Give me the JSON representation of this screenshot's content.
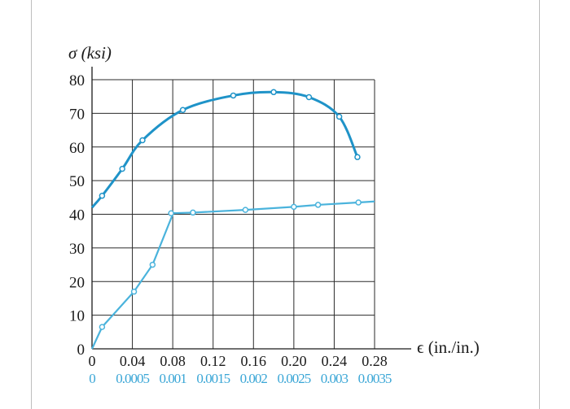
{
  "chart_data": {
    "type": "line",
    "ylabel": "σ (ksi)",
    "xlabel": "ϵ (in./in.)",
    "ylim": [
      0,
      80
    ],
    "xlim": [
      0,
      0.28
    ],
    "x2lim": [
      0,
      0.0035
    ],
    "grid": true,
    "yticks": [
      "0",
      "10",
      "20",
      "30",
      "40",
      "50",
      "60",
      "70",
      "80"
    ],
    "xticks": [
      "0",
      "0.04",
      "0.08",
      "0.12",
      "0.16",
      "0.20",
      "0.24",
      "0.28"
    ],
    "x2ticks": [
      "0",
      "0.0005",
      "0.001",
      "0.0015",
      "0.002",
      "0.0025",
      "0.003",
      "0.0035"
    ],
    "colors": {
      "upper": "#1f93c8",
      "lower": "#4ab3dc",
      "axis": "#1a1a1a",
      "grid": "#2a2a2a",
      "x2label": "#3aa6d6"
    },
    "series": [
      {
        "axis": "primary",
        "color": "#1f93c8",
        "x": [
          0,
          0.01,
          0.03,
          0.05,
          0.09,
          0.14,
          0.18,
          0.215,
          0.245,
          0.263
        ],
        "y": [
          42,
          45.5,
          53.5,
          62,
          71,
          75.3,
          76.3,
          74.8,
          69,
          57
        ]
      },
      {
        "axis": "secondary",
        "color": "#4ab3dc",
        "x": [
          0,
          0.000125,
          0.00052,
          0.00075,
          0.001,
          0.00098,
          0.00125,
          0.0019,
          0.0025,
          0.0028,
          0.0033,
          0.0035
        ],
        "y": [
          0,
          6.5,
          17,
          25,
          40,
          40.3,
          40.5,
          41.3,
          42.2,
          42.8,
          43.5,
          43.8
        ]
      }
    ]
  }
}
